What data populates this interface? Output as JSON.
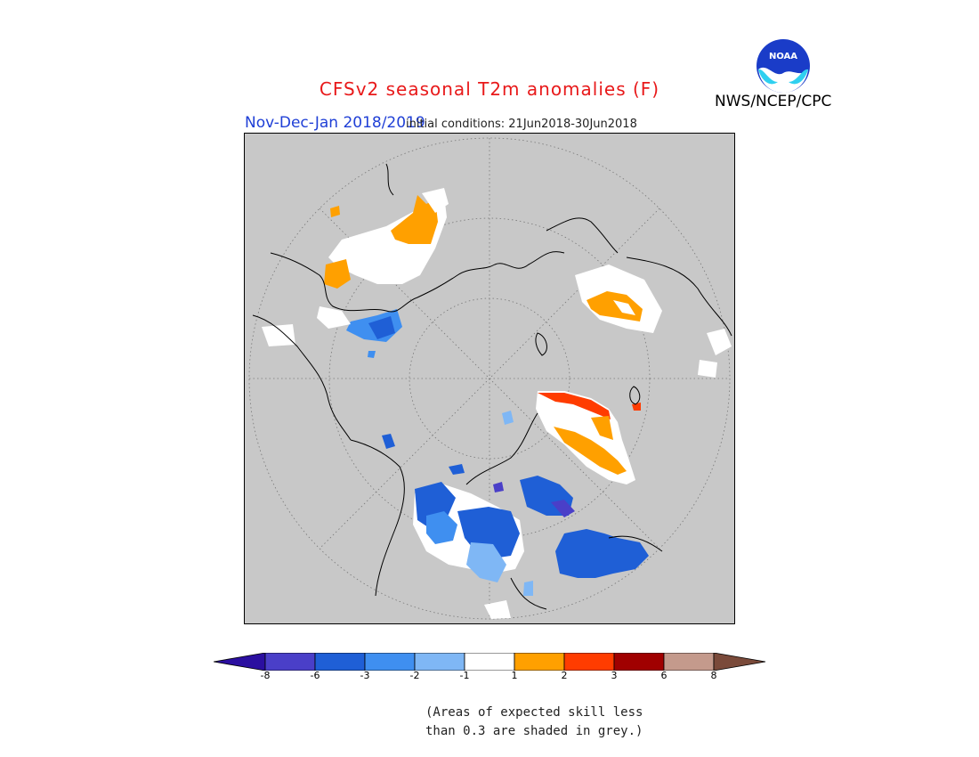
{
  "title": "CFSv2 seasonal T2m anomalies (F)",
  "period": "Nov-Dec-Jan 2018/2019",
  "initial_conditions": "initial conditions: 21Jun2018-30Jun2018",
  "agency": "NWS/NCEP/CPC",
  "logo_text": "NOAA",
  "note_line1": "(Areas of expected skill less",
  "note_line2": "than 0.3 are shaded in grey.)",
  "colorbar": {
    "ticks": [
      "-8",
      "-6",
      "-3",
      "-2",
      "-1",
      "1",
      "2",
      "3",
      "6",
      "8"
    ],
    "colors": [
      "#2b0fa0",
      "#4a3fc8",
      "#1f5fd6",
      "#3f8ff0",
      "#7fb7f5",
      "#ffffff",
      "#ffa000",
      "#ff3c00",
      "#a00000",
      "#c49a8c",
      "#7a4a3a"
    ]
  },
  "map": {
    "projection": "north-polar-stereographic",
    "colors": {
      "ocean_grey": "#c8c8c8",
      "no_skill_grey": "#c8c8c8",
      "coast": "#000000",
      "warm_light": "#ffa000",
      "warm_strong": "#ff3c00",
      "warm_extreme": "#a00000",
      "cold_light": "#7fb7f5",
      "cold_mid": "#3f8ff0",
      "cold_strong": "#1f5fd6",
      "cold_extreme": "#4a3fc8"
    }
  }
}
